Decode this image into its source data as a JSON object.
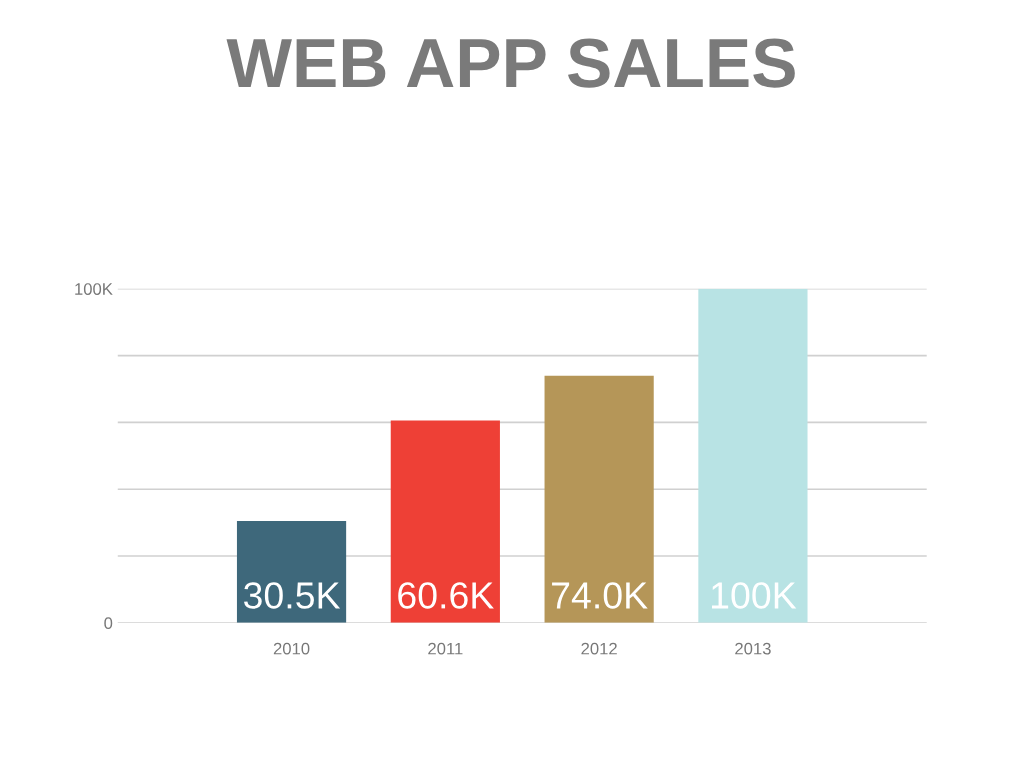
{
  "chart_data": {
    "type": "bar",
    "title": "WEB APP SALES",
    "categories": [
      "2010",
      "2011",
      "2012",
      "2013"
    ],
    "values": [
      30500,
      60600,
      74000,
      100000
    ],
    "colors": [
      "#3e687b",
      "#ee4036",
      "#b59658",
      "#b8e3e4"
    ],
    "value_labels": [
      "30.5K",
      "60.6K",
      "74.0K",
      "100K"
    ],
    "ylim": [
      0,
      100000
    ],
    "yticks": [
      0,
      {
        "value": 20000,
        "label": null
      },
      {
        "value": 40000,
        "label": null
      },
      {
        "value": 60000,
        "label": null
      },
      {
        "value": 80000,
        "label": null
      },
      {
        "value": 100000,
        "label": "100K"
      }
    ],
    "grid": "y"
  }
}
